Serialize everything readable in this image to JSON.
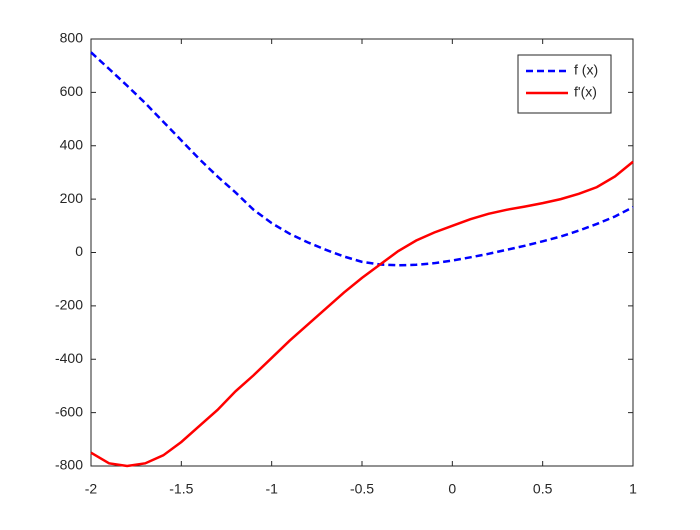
{
  "chart_data": {
    "type": "line",
    "x": [
      -2,
      -1.9,
      -1.8,
      -1.7,
      -1.6,
      -1.5,
      -1.4,
      -1.3,
      -1.2,
      -1.1,
      -1,
      -0.9,
      -0.8,
      -0.7,
      -0.6,
      -0.5,
      -0.4,
      -0.3,
      -0.2,
      -0.1,
      0,
      0.1,
      0.2,
      0.3,
      0.4,
      0.5,
      0.6,
      0.7,
      0.8,
      0.9,
      1
    ],
    "series": [
      {
        "name": "f (x)",
        "color": "#0000ff",
        "dash": true,
        "values": [
          750,
          688,
          625,
          560,
          490,
          420,
          350,
          285,
          225,
          160,
          110,
          70,
          38,
          10,
          -15,
          -35,
          -45,
          -48,
          -46,
          -40,
          -30,
          -18,
          -5,
          10,
          25,
          42,
          60,
          82,
          107,
          135,
          170
        ]
      },
      {
        "name": "f'(x)",
        "color": "#ff0000",
        "dash": false,
        "values": [
          -750,
          -790,
          -800,
          -790,
          -760,
          -710,
          -650,
          -590,
          -520,
          -460,
          -395,
          -330,
          -270,
          -210,
          -150,
          -95,
          -45,
          5,
          45,
          75,
          100,
          125,
          145,
          160,
          172,
          185,
          200,
          220,
          245,
          285,
          340
        ]
      }
    ],
    "xlim": [
      -2,
      1
    ],
    "xticks": [
      -2,
      -1.5,
      -1,
      -0.5,
      0,
      0.5,
      1
    ],
    "ylim": [
      -800,
      800
    ],
    "yticks": [
      -800,
      -600,
      -400,
      -200,
      0,
      200,
      400,
      600,
      800
    ],
    "legend": "top-right"
  }
}
